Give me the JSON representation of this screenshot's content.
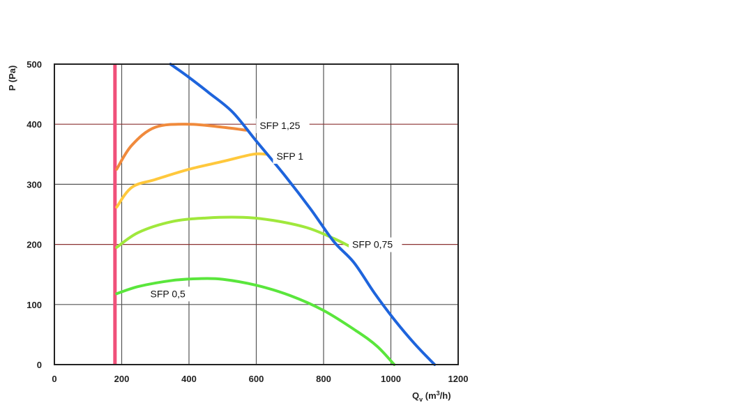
{
  "chart_data": {
    "type": "line",
    "ylabel": "P (Pa)",
    "xlabel": {
      "main": "Q",
      "sub": "v",
      "unit_pre": " (m",
      "sup": "3",
      "unit_post": "/h)"
    },
    "xlim": [
      0,
      1200
    ],
    "ylim": [
      0,
      500
    ],
    "x_ticks": [
      "0",
      "200",
      "400",
      "600",
      "800",
      "1000",
      "1200"
    ],
    "y_ticks": [
      "0",
      "100",
      "200",
      "300",
      "400",
      "500"
    ],
    "grid": true,
    "vertical_limit": {
      "x": 180,
      "color": "#f0507a"
    },
    "series": [
      {
        "name": "SFP 1,25",
        "color": "#f08a3c",
        "points": [
          [
            185,
            325
          ],
          [
            230,
            365
          ],
          [
            300,
            395
          ],
          [
            400,
            400
          ],
          [
            500,
            395
          ],
          [
            570,
            390
          ]
        ]
      },
      {
        "name": "SFP 1",
        "color": "#ffc83c",
        "points": [
          [
            185,
            262
          ],
          [
            230,
            295
          ],
          [
            300,
            308
          ],
          [
            400,
            325
          ],
          [
            500,
            338
          ],
          [
            590,
            350
          ],
          [
            630,
            350
          ]
        ]
      },
      {
        "name": "SFP 0,75",
        "color": "#a0e83c",
        "points": [
          [
            185,
            195
          ],
          [
            250,
            220
          ],
          [
            350,
            238
          ],
          [
            450,
            244
          ],
          [
            560,
            245
          ],
          [
            650,
            240
          ],
          [
            750,
            228
          ],
          [
            830,
            210
          ],
          [
            880,
            196
          ]
        ]
      },
      {
        "name": "SFP 0,5",
        "color": "#5ae63c",
        "points": [
          [
            185,
            118
          ],
          [
            250,
            130
          ],
          [
            350,
            140
          ],
          [
            430,
            143
          ],
          [
            500,
            142
          ],
          [
            600,
            132
          ],
          [
            700,
            115
          ],
          [
            800,
            90
          ],
          [
            900,
            55
          ],
          [
            960,
            30
          ],
          [
            1010,
            0
          ]
        ]
      },
      {
        "name": "",
        "color": "#1e64dc",
        "points": [
          [
            345,
            500
          ],
          [
            400,
            478
          ],
          [
            460,
            452
          ],
          [
            530,
            420
          ],
          [
            600,
            372
          ],
          [
            680,
            318
          ],
          [
            760,
            260
          ],
          [
            830,
            205
          ],
          [
            890,
            170
          ],
          [
            950,
            120
          ],
          [
            1010,
            75
          ],
          [
            1070,
            35
          ],
          [
            1130,
            0
          ]
        ]
      }
    ],
    "annotations": [
      {
        "text": "SFP 1,25",
        "x": 610,
        "y": 398
      },
      {
        "text": "SFP 1",
        "x": 660,
        "y": 347
      },
      {
        "text": "SFP 0,75",
        "x": 885,
        "y": 200
      },
      {
        "text": "SFP 0,5",
        "x": 285,
        "y": 118
      }
    ]
  }
}
